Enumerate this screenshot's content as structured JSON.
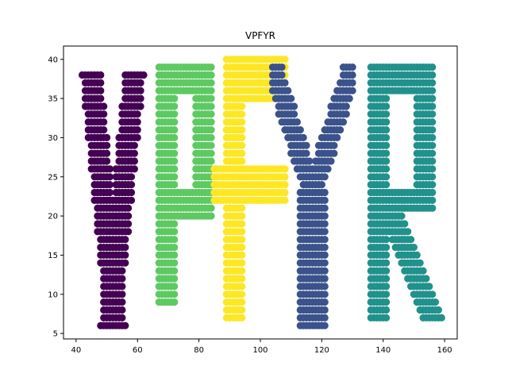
{
  "chart_data": {
    "type": "scatter",
    "title": "VPFYR",
    "xlabel": "",
    "ylabel": "",
    "xlim": [
      35.9,
      164.1
    ],
    "ylim": [
      4.3,
      41.7
    ],
    "xticks": [
      40,
      60,
      80,
      100,
      120,
      140,
      160
    ],
    "yticks": [
      5,
      10,
      15,
      20,
      25,
      30,
      35,
      40
    ],
    "grid": false,
    "series": [
      {
        "color": "#440154",
        "shape": {
          "kind": "V",
          "x0": 42,
          "x1": 62,
          "yTop": 38,
          "yBottom": 6,
          "stroke": 6
        }
      },
      {
        "color": "#5ec962",
        "shape": {
          "kind": "P",
          "x0": 67,
          "x1": 84,
          "yTop": 39,
          "yBottom": 9,
          "bowlBottom": 20,
          "stroke": 5
        }
      },
      {
        "color": "#fde725",
        "shape": {
          "kind": "F",
          "x0": 85,
          "x1": 108,
          "yTop": 40,
          "yBottom": 7,
          "midY": 24,
          "stroke": 5
        }
      },
      {
        "color": "#3b528b",
        "shape": {
          "kind": "Y",
          "x0": 104,
          "x1": 130,
          "yTop": 39,
          "yBottom": 6,
          "forkY": 23,
          "stroke": 6
        }
      },
      {
        "color": "#21918c",
        "shape": {
          "kind": "R",
          "x0": 136,
          "x1": 159,
          "yTop": 39,
          "yBottom": 7,
          "bowlBottom": 21,
          "stroke": 5
        }
      }
    ]
  }
}
